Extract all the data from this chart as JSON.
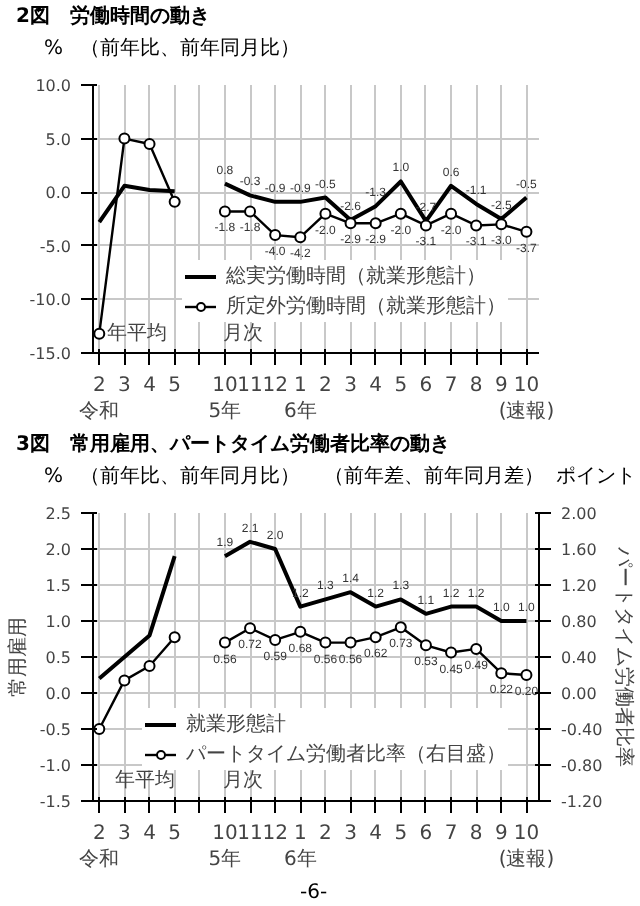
{
  "chart_data": [
    {
      "type": "line",
      "title": "2図　労働時間の動き",
      "subtitle": "（前年比、前年同月比）",
      "ylabel": "%",
      "categories": [
        "2\n令和",
        "3",
        "4",
        "5",
        null,
        "10\n5年",
        "11",
        "12",
        "1\n6年",
        "2",
        "3",
        "4",
        "5",
        "6",
        "7",
        "8",
        "9",
        "10\n(速報)"
      ],
      "series": [
        {
          "name": "総実労働時間（就業形態計）",
          "color": "#000000",
          "marker": "none",
          "values": [
            -2.8,
            0.6,
            0.2,
            0.1,
            null,
            0.8,
            -0.3,
            -0.9,
            -0.9,
            -0.5,
            -2.6,
            -1.3,
            1.0,
            -2.7,
            0.6,
            -1.1,
            -2.5,
            -0.5
          ],
          "value_labels": [
            null,
            null,
            null,
            null,
            null,
            "0.8",
            "-0.3",
            "-0.9",
            "-0.9",
            "-0.5",
            "-2.6",
            "-1.3",
            "1.0",
            "-2.7",
            "0.6",
            "-1.1",
            "-2.5",
            "-0.5"
          ]
        },
        {
          "name": "所定外労働時間（就業形態計）",
          "color": "#000000",
          "marker": "circle",
          "values": [
            -13.2,
            5.0,
            4.5,
            -0.9,
            null,
            -1.8,
            -1.8,
            -4.0,
            -4.2,
            -2.0,
            -2.9,
            -2.9,
            -2.0,
            -3.1,
            -2.0,
            -3.1,
            -3.0,
            -3.7
          ],
          "value_labels": [
            null,
            null,
            null,
            null,
            null,
            "-1.8",
            "-1.8",
            "-4.0",
            "-4.2",
            "-2.0",
            "-2.9",
            "-2.9",
            "-2.0",
            "-3.1",
            "-2.0",
            "-3.1",
            "-3.0",
            "-3.7"
          ]
        }
      ],
      "ylim": [
        -15,
        10
      ],
      "yticks": [
        {
          "value": 10,
          "label": "10.0"
        },
        {
          "value": 5,
          "label": "5.0"
        },
        {
          "value": 0,
          "label": "0.0"
        },
        {
          "value": -5,
          "label": "-5.0"
        },
        {
          "value": -10,
          "label": "-10.0"
        },
        {
          "value": -15,
          "label": "-15.0"
        }
      ],
      "grid": true,
      "legend": "bottom right",
      "annotations": [
        "年平均",
        "月次"
      ]
    },
    {
      "type": "line",
      "title": "3図　常用雇用、パートタイム労働者比率の動き",
      "subtitle": "（前年比、前年同月比）",
      "ylabel": "常用雇用",
      "y2label": "パートタイム労働者比率",
      "categories": [
        "2\n令和",
        "3",
        "4",
        "5",
        null,
        "10\n5年",
        "11",
        "12",
        "1\n6年",
        "2",
        "3",
        "4",
        "5",
        "6",
        "7",
        "8",
        "9",
        "10\n(速報)"
      ],
      "series": [
        {
          "name": "就業形態計",
          "color": "#000000",
          "marker": "none",
          "values": [
            0.2,
            0.5,
            0.8,
            1.9,
            null,
            1.9,
            2.1,
            2.0,
            1.2,
            1.3,
            1.4,
            1.2,
            1.3,
            1.1,
            1.2,
            1.2,
            1.0,
            1.0
          ],
          "value_labels": [
            null,
            null,
            null,
            null,
            null,
            "1.9",
            "2.1",
            "2.0",
            "1.2",
            "1.3",
            "1.4",
            "1.2",
            "1.3",
            "1.1",
            "1.2",
            "1.2",
            "1.0",
            "1.0"
          ]
        },
        {
          "name": "パートタイム労働者比率（右目盛）",
          "color": "#000000",
          "marker": "circle",
          "axis": "y2",
          "values": [
            -0.4,
            0.14,
            0.3,
            0.62,
            null,
            0.56,
            0.72,
            0.59,
            0.68,
            0.56,
            0.56,
            0.62,
            0.73,
            0.53,
            0.45,
            0.49,
            0.22,
            0.2
          ],
          "value_labels": [
            null,
            null,
            null,
            null,
            null,
            "0.56",
            "0.72",
            "0.59",
            "0.68",
            "0.56",
            "0.56",
            "0.62",
            "0.73",
            "0.53",
            "0.45",
            "0.49",
            "0.22",
            "0.20"
          ]
        }
      ],
      "ylim": [
        -1.5,
        2.5
      ],
      "yticks": [
        2.5,
        {
          "value": 2,
          "label": "2.0"
        },
        1.5,
        {
          "value": 1,
          "label": "1.0"
        },
        0.5,
        {
          "value": 0,
          "label": "0.0"
        },
        -0.5,
        {
          "value": -1,
          "label": "-1.0"
        },
        -1.5
      ],
      "y2lim": [
        -1.2,
        2.0
      ],
      "y2ticks": [
        {
          "value": 2,
          "label": "2.00"
        },
        {
          "value": 1.6,
          "label": "1.60"
        },
        {
          "value": 1.2,
          "label": "1.20"
        },
        {
          "value": 0.8,
          "label": "0.80"
        },
        {
          "value": 0.4,
          "label": "0.40"
        },
        {
          "value": 0,
          "label": "0.00"
        },
        {
          "value": -0.4,
          "label": "-0.40"
        },
        {
          "value": -0.8,
          "label": "-0.80"
        },
        {
          "value": -1.2,
          "label": "-1.20"
        }
      ],
      "grid": true,
      "legend": "bottom right",
      "annotations": [
        "%",
        "（前年差、前年同月差）",
        "ポイント",
        "年平均",
        "月次",
        "-6-"
      ]
    }
  ]
}
